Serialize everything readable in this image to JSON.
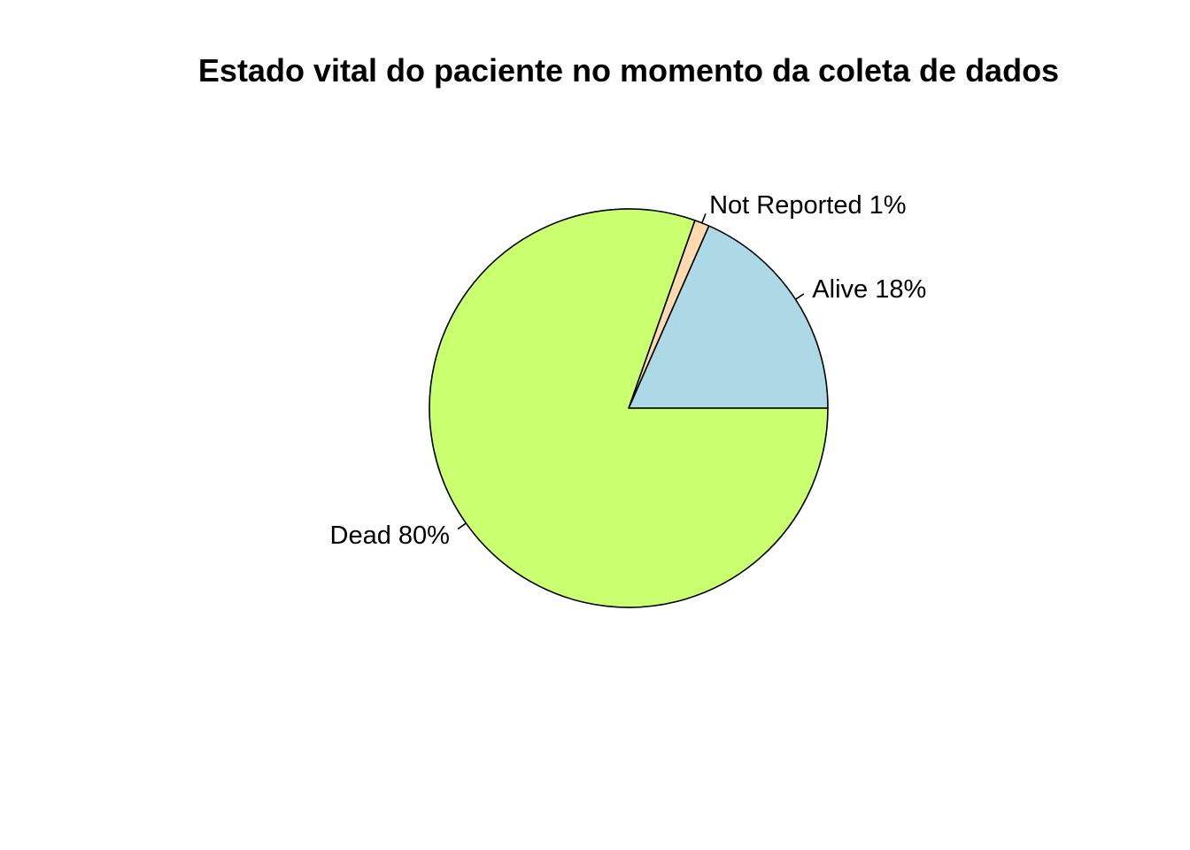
{
  "chart_data": {
    "type": "pie",
    "title": "Estado vital do paciente no momento da coleta de dados",
    "slices": [
      {
        "label": "Alive",
        "value": 18.4,
        "percent_label": "Alive 18%",
        "color": "#ADD8E6"
      },
      {
        "label": "Not Reported",
        "value": 1.2,
        "percent_label": "Not Reported 1%",
        "color": "#FFDAB0"
      },
      {
        "label": "Dead",
        "value": 80.4,
        "percent_label": "Dead 80%",
        "color": "#CAFF70"
      }
    ],
    "start": "3 o'clock",
    "direction": "counterclockwise",
    "border_color": "#000000"
  }
}
